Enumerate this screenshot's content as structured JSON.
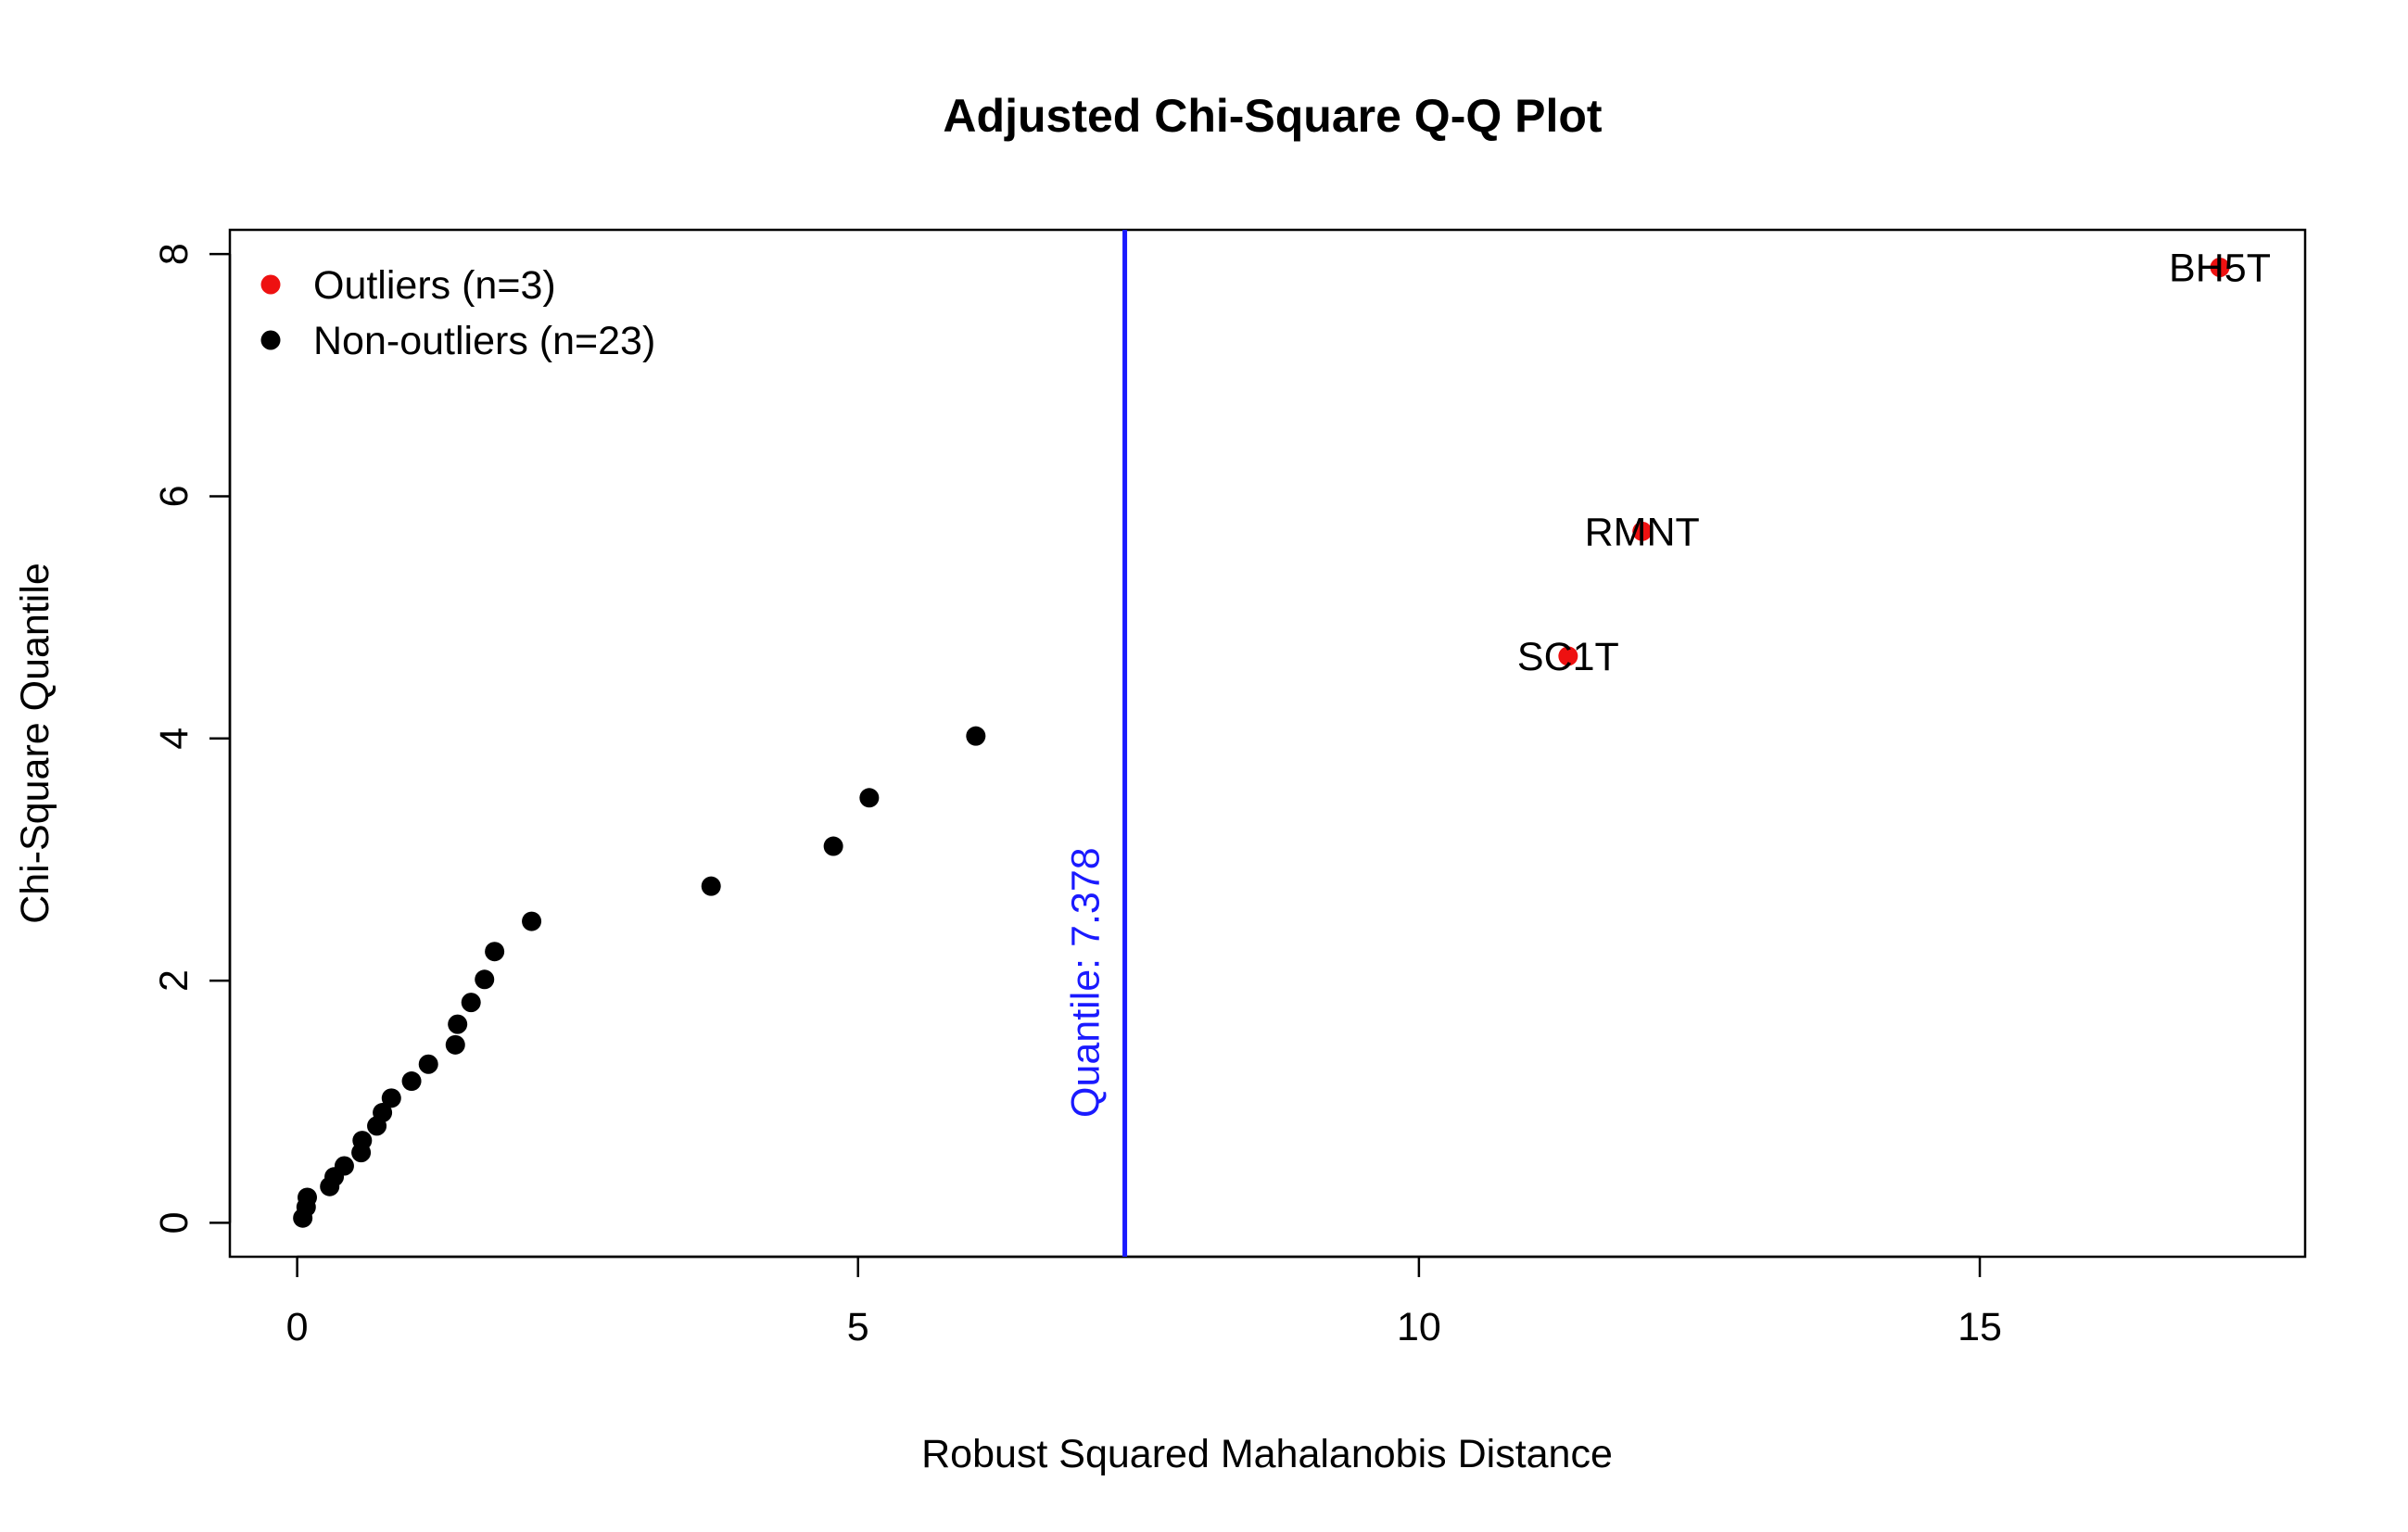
{
  "chart_data": {
    "type": "scatter",
    "title": "Adjusted Chi-Square Q-Q Plot",
    "xlabel": "Robust Squared Mahalanobis Distance",
    "ylabel": "Chi-Square Quantile",
    "xlim": [
      -0.6,
      17.9
    ],
    "ylim": [
      -0.28,
      8.2
    ],
    "x_ticks": [
      0,
      5,
      10,
      15
    ],
    "x_tick_labels": [
      "0",
      "5",
      "10",
      "15"
    ],
    "y_ticks": [
      0,
      2,
      4,
      6,
      8
    ],
    "y_tick_labels": [
      "0",
      "2",
      "4",
      "6",
      "8"
    ],
    "grid": false,
    "legend_position": "top-left",
    "colors": {
      "outlier": "#ee1111",
      "non_outlier": "#000000",
      "reference": "#1a1aff"
    },
    "series": [
      {
        "name": "Outliers (n=3)",
        "color": "#ee1111",
        "points": [
          {
            "x": 11.33,
            "y": 4.68,
            "label": "SC1T"
          },
          {
            "x": 11.99,
            "y": 5.71,
            "label": "RMNT"
          },
          {
            "x": 17.14,
            "y": 7.89,
            "label": "BH5T"
          }
        ]
      },
      {
        "name": "Non-outliers (n=23)",
        "color": "#000000",
        "points": [
          {
            "x": 0.05,
            "y": 0.04
          },
          {
            "x": 0.08,
            "y": 0.13
          },
          {
            "x": 0.09,
            "y": 0.21
          },
          {
            "x": 0.29,
            "y": 0.3
          },
          {
            "x": 0.33,
            "y": 0.38
          },
          {
            "x": 0.42,
            "y": 0.47
          },
          {
            "x": 0.57,
            "y": 0.58
          },
          {
            "x": 0.58,
            "y": 0.68
          },
          {
            "x": 0.71,
            "y": 0.8
          },
          {
            "x": 0.76,
            "y": 0.91
          },
          {
            "x": 0.84,
            "y": 1.03
          },
          {
            "x": 1.02,
            "y": 1.17
          },
          {
            "x": 1.17,
            "y": 1.31
          },
          {
            "x": 1.41,
            "y": 1.47
          },
          {
            "x": 1.43,
            "y": 1.64
          },
          {
            "x": 1.55,
            "y": 1.82
          },
          {
            "x": 1.67,
            "y": 2.01
          },
          {
            "x": 1.76,
            "y": 2.24
          },
          {
            "x": 2.09,
            "y": 2.49
          },
          {
            "x": 3.69,
            "y": 2.78
          },
          {
            "x": 4.78,
            "y": 3.11
          },
          {
            "x": 5.1,
            "y": 3.51
          },
          {
            "x": 6.05,
            "y": 4.02
          }
        ]
      }
    ],
    "reference_line": {
      "orientation": "vertical",
      "x": 7.378,
      "label": "Quantile:  7.378",
      "color": "#1a1aff"
    },
    "legend": [
      {
        "label": "Outliers (n=3)",
        "color": "#ee1111"
      },
      {
        "label": "Non-outliers (n=23)",
        "color": "#000000"
      }
    ]
  }
}
